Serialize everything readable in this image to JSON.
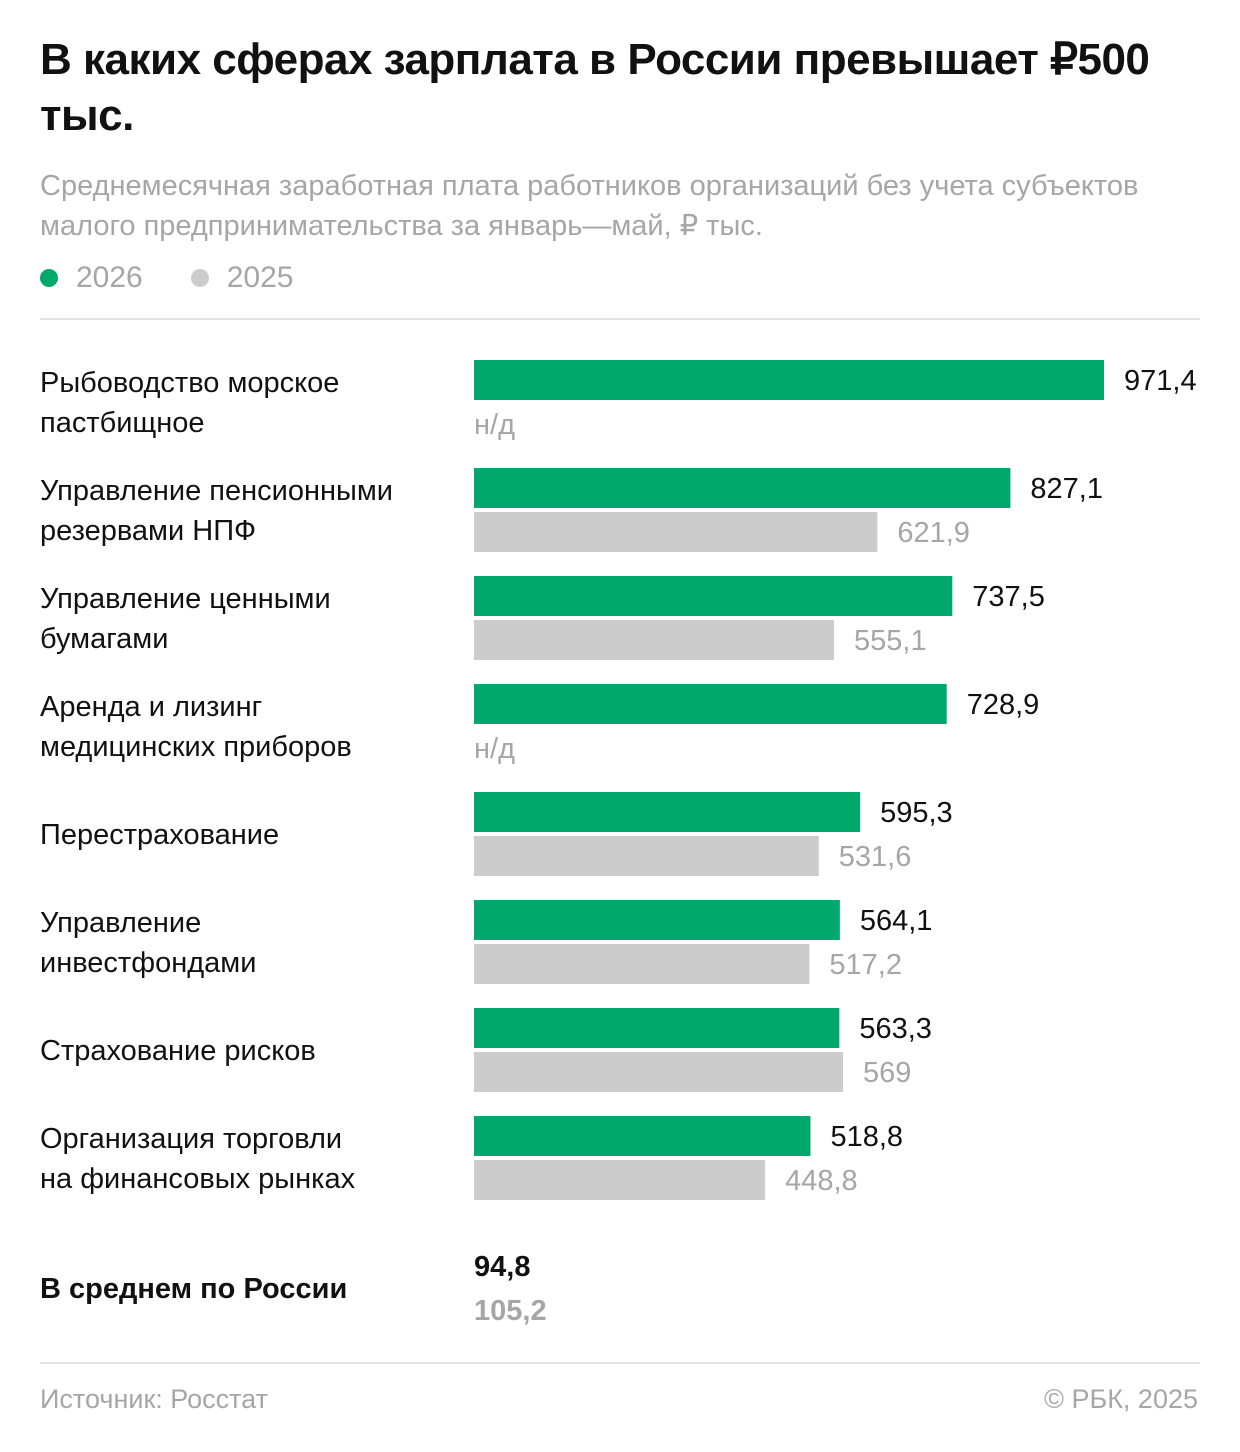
{
  "title": "В каких сферах зарплата в России превышает ₽500 тыс.",
  "subtitle": "Среднемесячная заработная плата работников организаций без учета субъектов малого предпринимательства за январь—май, ₽ тыс.",
  "colors": {
    "current": "#00a86b",
    "previous": "#cccccc",
    "label_previous": "#a6a6a6"
  },
  "chart_data": {
    "type": "bar",
    "orientation": "horizontal",
    "categories": [
      [
        "Рыбоводство морское",
        "пастбищное"
      ],
      [
        "Управление пенсионными",
        "резервами НПФ"
      ],
      [
        "Управление ценными",
        "бумагами"
      ],
      [
        "Аренда и лизинг",
        "медицинских приборов"
      ],
      [
        "Перестрахование"
      ],
      [
        "Управление",
        "инвестфондами"
      ],
      [
        "Страхование рисков"
      ],
      [
        "Организация торговли",
        "на финансовых рынках"
      ]
    ],
    "series": [
      {
        "name": "2026",
        "values": [
          971.4,
          827.1,
          737.5,
          728.9,
          595.3,
          564.1,
          563.3,
          518.8
        ],
        "labels": [
          "971,4",
          "827,1",
          "737,5",
          "728,9",
          "595,3",
          "564,1",
          "563,3",
          "518,8"
        ]
      },
      {
        "name": "2025",
        "values": [
          null,
          621.9,
          555.1,
          null,
          531.6,
          517.2,
          569,
          448.8
        ],
        "labels": [
          "н/д",
          "621,9",
          "555,1",
          "н/д",
          "531,6",
          "517,2",
          "569",
          "448,8"
        ]
      }
    ],
    "xlim": [
      0,
      971.4
    ],
    "legend_position": "top-left",
    "grid": false,
    "average": {
      "label": "В среднем по России",
      "values": [
        94.8,
        105.2
      ],
      "labels": [
        "94,8",
        "105,2"
      ]
    }
  },
  "footer": {
    "source": "Источник: Росстат",
    "copyright": "© РБК, 2025"
  }
}
